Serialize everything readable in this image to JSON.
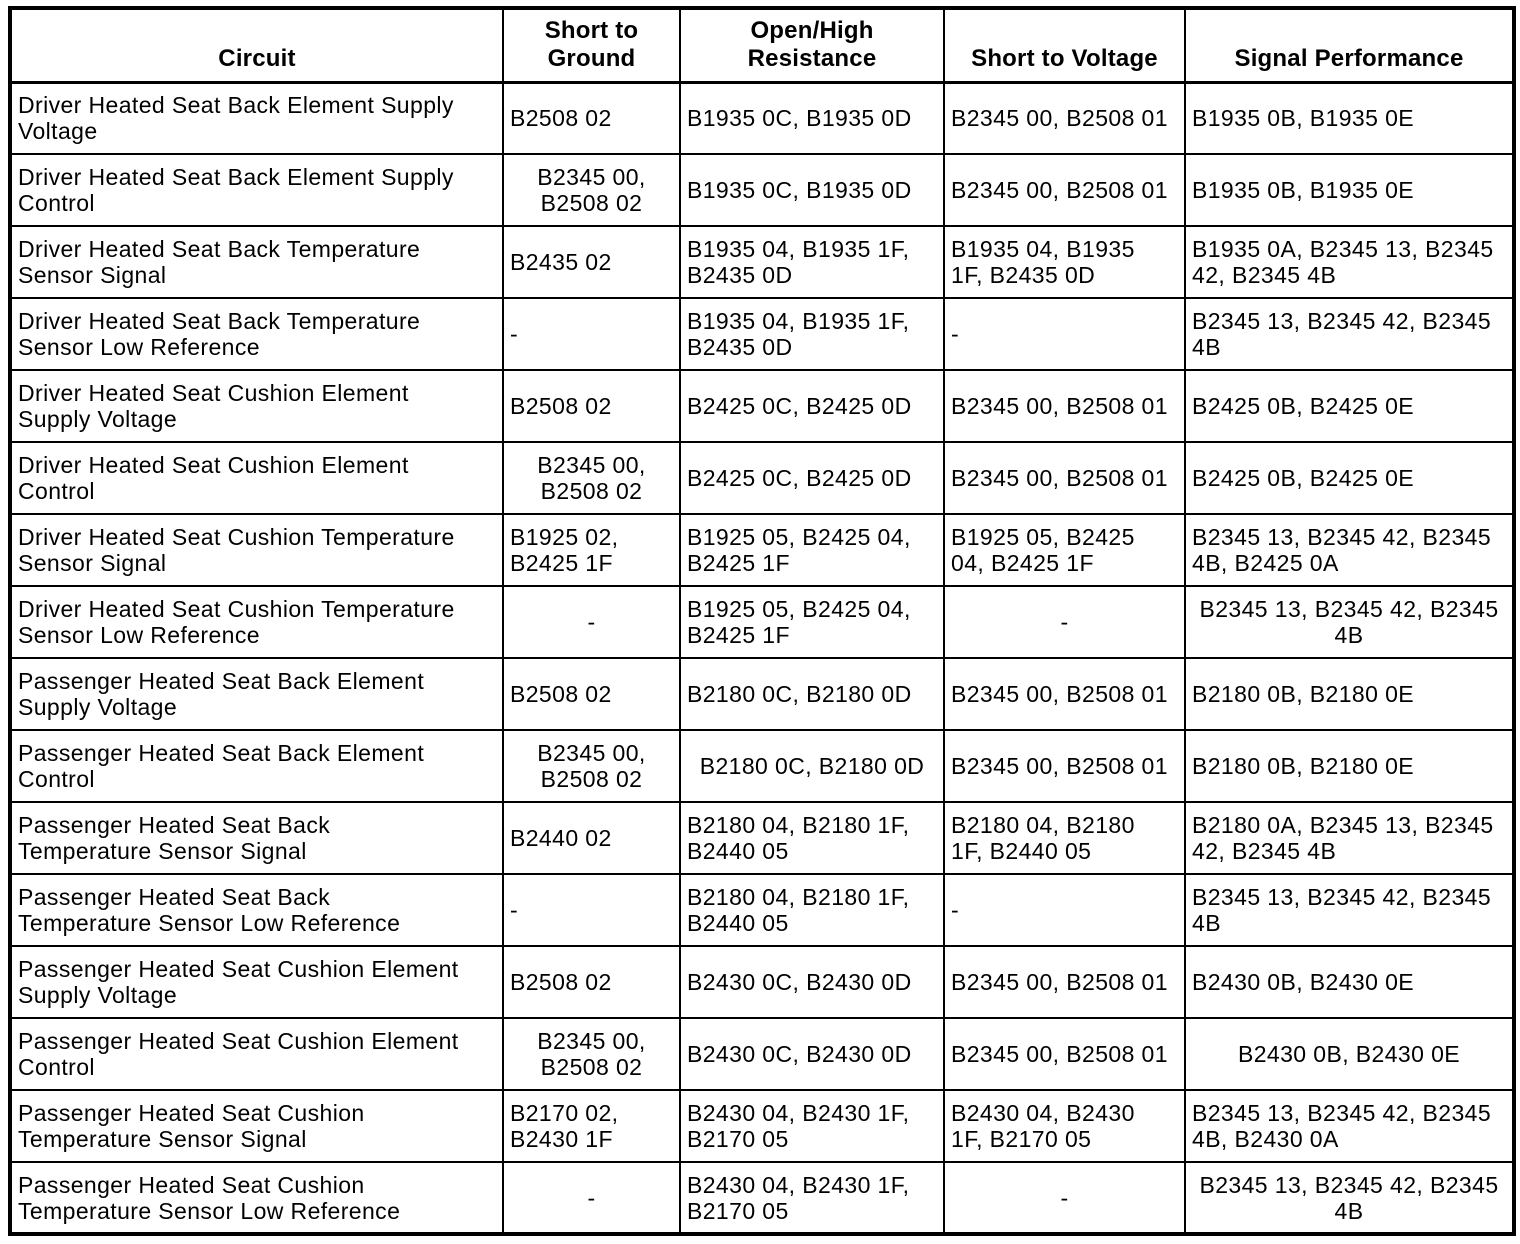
{
  "table": {
    "columns": [
      {
        "id": "circuit",
        "label": "Circuit"
      },
      {
        "id": "short-to-ground",
        "label": "Short to\nGround"
      },
      {
        "id": "open-high-resistance",
        "label": "Open/High\nResistance"
      },
      {
        "id": "short-to-voltage",
        "label": "Short to Voltage"
      },
      {
        "id": "signal-performance",
        "label": "Signal Performance"
      }
    ],
    "rows": [
      {
        "cells": [
          {
            "text": "Driver Heated Seat Back Element Supply\nVoltage",
            "align": "left"
          },
          {
            "text": "B2508 02",
            "align": "left"
          },
          {
            "text": "B1935 0C, B1935 0D",
            "align": "left"
          },
          {
            "text": "B2345 00, B2508 01",
            "align": "left"
          },
          {
            "text": "B1935 0B, B1935 0E",
            "align": "left"
          }
        ]
      },
      {
        "cells": [
          {
            "text": "Driver Heated Seat Back Element Supply\nControl",
            "align": "left"
          },
          {
            "text": "B2345 00,\nB2508 02",
            "align": "center"
          },
          {
            "text": "B1935 0C, B1935 0D",
            "align": "left"
          },
          {
            "text": "B2345 00, B2508 01",
            "align": "left"
          },
          {
            "text": "B1935 0B, B1935 0E",
            "align": "left"
          }
        ]
      },
      {
        "cells": [
          {
            "text": "Driver Heated Seat Back Temperature\nSensor Signal",
            "align": "left"
          },
          {
            "text": "B2435 02",
            "align": "left"
          },
          {
            "text": "B1935 04, B1935 1F,\nB2435 0D",
            "align": "left"
          },
          {
            "text": "B1935 04, B1935\n1F, B2435 0D",
            "align": "left"
          },
          {
            "text": "B1935 0A, B2345 13, B2345\n42, B2345 4B",
            "align": "left"
          }
        ]
      },
      {
        "cells": [
          {
            "text": "Driver Heated Seat Back Temperature\nSensor Low Reference",
            "align": "left"
          },
          {
            "text": "-",
            "align": "left"
          },
          {
            "text": "B1935 04, B1935 1F,\nB2435 0D",
            "align": "left"
          },
          {
            "text": "-",
            "align": "left"
          },
          {
            "text": "B2345 13, B2345 42, B2345\n4B",
            "align": "left"
          }
        ]
      },
      {
        "cells": [
          {
            "text": "Driver Heated Seat Cushion Element\nSupply Voltage",
            "align": "left"
          },
          {
            "text": "B2508 02",
            "align": "left"
          },
          {
            "text": "B2425 0C, B2425 0D",
            "align": "left"
          },
          {
            "text": "B2345 00, B2508 01",
            "align": "left"
          },
          {
            "text": "B2425 0B, B2425 0E",
            "align": "left"
          }
        ]
      },
      {
        "cells": [
          {
            "text": "Driver Heated Seat Cushion Element\nControl",
            "align": "left"
          },
          {
            "text": "B2345 00,\nB2508 02",
            "align": "center"
          },
          {
            "text": "B2425 0C, B2425 0D",
            "align": "left"
          },
          {
            "text": "B2345 00, B2508 01",
            "align": "left"
          },
          {
            "text": "B2425 0B, B2425 0E",
            "align": "left"
          }
        ]
      },
      {
        "cells": [
          {
            "text": "Driver Heated Seat Cushion Temperature\nSensor Signal",
            "align": "left"
          },
          {
            "text": "B1925 02,\nB2425 1F",
            "align": "left"
          },
          {
            "text": "B1925 05, B2425 04,\nB2425 1F",
            "align": "left"
          },
          {
            "text": "B1925 05, B2425\n04, B2425 1F",
            "align": "left"
          },
          {
            "text": "B2345 13, B2345 42, B2345\n4B, B2425 0A",
            "align": "left"
          }
        ]
      },
      {
        "cells": [
          {
            "text": "Driver Heated Seat Cushion Temperature\nSensor Low Reference",
            "align": "left"
          },
          {
            "text": "-",
            "align": "center"
          },
          {
            "text": "B1925 05, B2425 04,\nB2425 1F",
            "align": "left"
          },
          {
            "text": "-",
            "align": "center"
          },
          {
            "text": "B2345 13, B2345 42, B2345\n4B",
            "align": "center"
          }
        ]
      },
      {
        "cells": [
          {
            "text": "Passenger Heated Seat Back Element\nSupply Voltage",
            "align": "left"
          },
          {
            "text": "B2508 02",
            "align": "left"
          },
          {
            "text": "B2180 0C, B2180 0D",
            "align": "left"
          },
          {
            "text": "B2345 00, B2508 01",
            "align": "left"
          },
          {
            "text": "B2180 0B, B2180 0E",
            "align": "left"
          }
        ]
      },
      {
        "cells": [
          {
            "text": "Passenger Heated Seat Back Element\nControl",
            "align": "left"
          },
          {
            "text": "B2345 00,\nB2508 02",
            "align": "center"
          },
          {
            "text": "B2180 0C, B2180 0D",
            "align": "center"
          },
          {
            "text": "B2345 00, B2508 01",
            "align": "left"
          },
          {
            "text": "B2180 0B, B2180 0E",
            "align": "left"
          }
        ]
      },
      {
        "cells": [
          {
            "text": "Passenger Heated Seat Back\nTemperature Sensor Signal",
            "align": "left"
          },
          {
            "text": "B2440 02",
            "align": "left"
          },
          {
            "text": "B2180 04, B2180 1F,\nB2440 05",
            "align": "left"
          },
          {
            "text": "B2180 04, B2180\n1F, B2440 05",
            "align": "left"
          },
          {
            "text": "B2180 0A, B2345 13, B2345\n42, B2345 4B",
            "align": "left"
          }
        ]
      },
      {
        "cells": [
          {
            "text": "Passenger Heated Seat Back\nTemperature Sensor Low Reference",
            "align": "left"
          },
          {
            "text": "-",
            "align": "left"
          },
          {
            "text": "B2180 04, B2180 1F,\nB2440 05",
            "align": "left"
          },
          {
            "text": "-",
            "align": "left"
          },
          {
            "text": "B2345 13, B2345 42, B2345\n4B",
            "align": "left"
          }
        ]
      },
      {
        "cells": [
          {
            "text": "Passenger Heated Seat Cushion Element\nSupply Voltage",
            "align": "left"
          },
          {
            "text": "B2508 02",
            "align": "left"
          },
          {
            "text": "B2430 0C, B2430 0D",
            "align": "left"
          },
          {
            "text": "B2345 00, B2508 01",
            "align": "left"
          },
          {
            "text": "B2430 0B, B2430 0E",
            "align": "left"
          }
        ]
      },
      {
        "cells": [
          {
            "text": "Passenger Heated Seat Cushion Element\nControl",
            "align": "left"
          },
          {
            "text": "B2345 00,\nB2508 02",
            "align": "center"
          },
          {
            "text": "B2430 0C, B2430 0D",
            "align": "left"
          },
          {
            "text": "B2345 00, B2508 01",
            "align": "left"
          },
          {
            "text": "B2430 0B, B2430 0E",
            "align": "center"
          }
        ]
      },
      {
        "cells": [
          {
            "text": "Passenger Heated Seat Cushion\nTemperature Sensor Signal",
            "align": "left"
          },
          {
            "text": "B2170 02,\nB2430 1F",
            "align": "left"
          },
          {
            "text": "B2430 04, B2430 1F,\nB2170 05",
            "align": "left"
          },
          {
            "text": "B2430 04, B2430\n1F, B2170 05",
            "align": "left"
          },
          {
            "text": "B2345 13, B2345 42, B2345\n4B, B2430 0A",
            "align": "left"
          }
        ]
      },
      {
        "cells": [
          {
            "text": "Passenger Heated Seat Cushion\nTemperature Sensor Low Reference",
            "align": "left"
          },
          {
            "text": "-",
            "align": "center"
          },
          {
            "text": "B2430 04, B2430 1F,\nB2170 05",
            "align": "left"
          },
          {
            "text": "-",
            "align": "center"
          },
          {
            "text": "B2345 13, B2345 42, B2345\n4B",
            "align": "center"
          }
        ]
      }
    ]
  },
  "colors": {
    "border": "#000000",
    "text": "#000000",
    "background": "#ffffff"
  }
}
